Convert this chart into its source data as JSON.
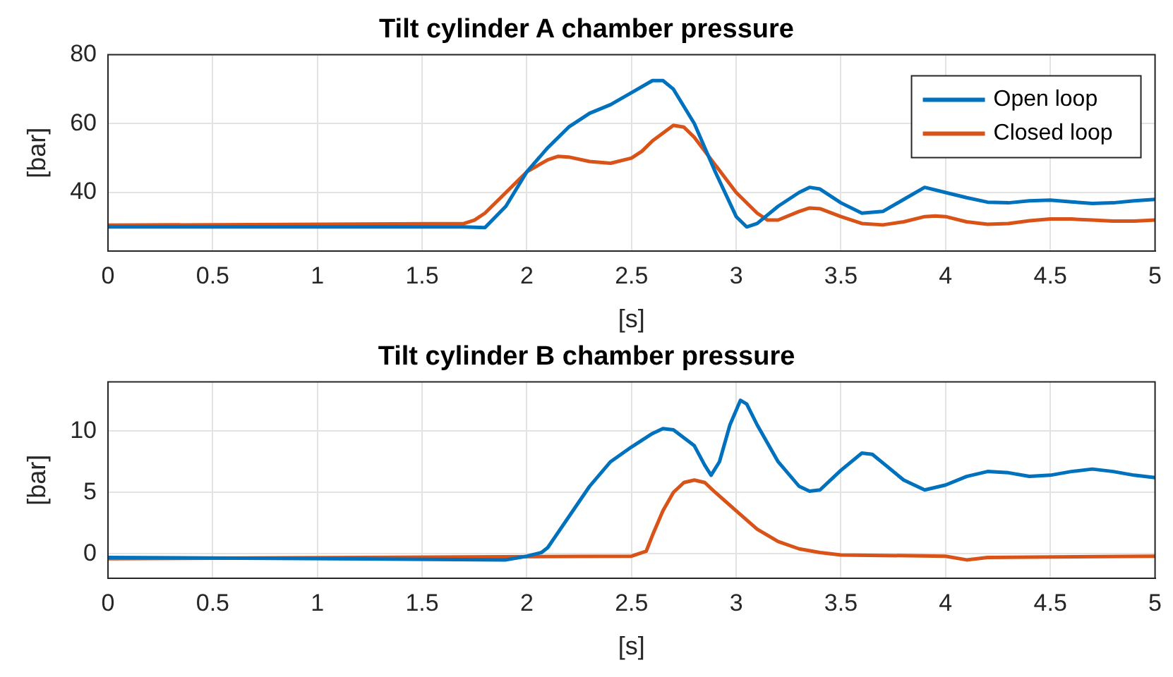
{
  "chart_data": [
    {
      "type": "line",
      "title": "Tilt cylinder A chamber pressure",
      "xlabel": "[s]",
      "ylabel": "[bar]",
      "xlim": [
        0,
        5
      ],
      "xticks": [
        0,
        0.5,
        1,
        1.5,
        2,
        2.5,
        3,
        3.5,
        4,
        4.5,
        5
      ],
      "ylim": [
        23,
        80
      ],
      "yticks": [
        40,
        60,
        80
      ],
      "grid": true,
      "legend": "top right",
      "marker": "none",
      "line_style": "solid",
      "series": [
        {
          "name": "Open loop",
          "color": "#0072bd",
          "x": [
            0,
            1.7,
            1.8,
            1.9,
            2.0,
            2.1,
            2.2,
            2.3,
            2.4,
            2.5,
            2.6,
            2.65,
            2.7,
            2.8,
            2.9,
            3.0,
            3.05,
            3.1,
            3.2,
            3.3,
            3.35,
            3.4,
            3.5,
            3.6,
            3.7,
            3.8,
            3.9,
            4.0,
            4.1,
            4.2,
            4.3,
            4.4,
            4.5,
            4.6,
            4.7,
            4.8,
            4.9,
            5
          ],
          "values": [
            30,
            30,
            29.8,
            36,
            46,
            53,
            59,
            63,
            65.5,
            69,
            72.5,
            72.5,
            70,
            60,
            46,
            33,
            30,
            31,
            36,
            40,
            41.5,
            41,
            37,
            34,
            34.5,
            38,
            41.5,
            40,
            38.5,
            37.2,
            37,
            37.6,
            37.8,
            37.3,
            36.8,
            37,
            37.6,
            38
          ]
        },
        {
          "name": "Closed loop",
          "color": "#d95319",
          "x": [
            0,
            1.7,
            1.75,
            1.8,
            1.9,
            2.0,
            2.1,
            2.15,
            2.2,
            2.3,
            2.4,
            2.5,
            2.55,
            2.6,
            2.7,
            2.75,
            2.8,
            2.9,
            3.0,
            3.1,
            3.15,
            3.2,
            3.3,
            3.35,
            3.4,
            3.5,
            3.6,
            3.7,
            3.8,
            3.9,
            3.95,
            4.0,
            4.1,
            4.2,
            4.3,
            4.4,
            4.5,
            4.6,
            4.7,
            4.8,
            4.9,
            5
          ],
          "values": [
            30.5,
            31,
            32,
            34,
            40,
            46,
            49.5,
            50.5,
            50.3,
            49,
            48.5,
            50,
            52,
            55,
            59.5,
            59,
            56,
            48,
            40,
            34,
            32,
            32,
            34.5,
            35.5,
            35.3,
            33,
            31,
            30.6,
            31.5,
            33,
            33.2,
            33,
            31.5,
            30.8,
            31,
            31.8,
            32.3,
            32.3,
            32,
            31.7,
            31.7,
            32
          ]
        }
      ]
    },
    {
      "type": "line",
      "title": "Tilt cylinder B chamber pressure",
      "xlabel": "[s]",
      "ylabel": "[bar]",
      "xlim": [
        0,
        5
      ],
      "xticks": [
        0,
        0.5,
        1,
        1.5,
        2,
        2.5,
        3,
        3.5,
        4,
        4.5,
        5
      ],
      "ylim": [
        -2,
        14
      ],
      "yticks": [
        0,
        5,
        10
      ],
      "grid": true,
      "marker": "none",
      "line_style": "solid",
      "series": [
        {
          "color": "#0072bd",
          "x": [
            0,
            1.9,
            2.0,
            2.07,
            2.1,
            2.2,
            2.3,
            2.4,
            2.5,
            2.6,
            2.65,
            2.7,
            2.8,
            2.85,
            2.88,
            2.92,
            2.97,
            3.02,
            3.05,
            3.1,
            3.2,
            3.3,
            3.35,
            3.4,
            3.5,
            3.6,
            3.65,
            3.7,
            3.8,
            3.9,
            4.0,
            4.1,
            4.2,
            4.3,
            4.4,
            4.5,
            4.6,
            4.7,
            4.8,
            4.9,
            5
          ],
          "values": [
            -0.3,
            -0.5,
            -0.2,
            0.1,
            0.5,
            3,
            5.5,
            7.5,
            8.7,
            9.8,
            10.2,
            10.1,
            8.8,
            7.2,
            6.4,
            7.5,
            10.5,
            12.5,
            12.2,
            10.5,
            7.5,
            5.5,
            5.1,
            5.2,
            6.8,
            8.2,
            8.1,
            7.4,
            6,
            5.2,
            5.6,
            6.3,
            6.7,
            6.6,
            6.3,
            6.4,
            6.7,
            6.9,
            6.7,
            6.4,
            6.2
          ]
        },
        {
          "color": "#d95319",
          "x": [
            0,
            2.5,
            2.57,
            2.6,
            2.65,
            2.7,
            2.75,
            2.8,
            2.85,
            2.9,
            3.0,
            3.1,
            3.2,
            3.3,
            3.4,
            3.5,
            4.0,
            4.1,
            4.2,
            5
          ],
          "values": [
            -0.4,
            -0.2,
            0.2,
            1.5,
            3.5,
            5,
            5.8,
            6,
            5.8,
            5,
            3.5,
            2,
            1,
            0.4,
            0.1,
            -0.1,
            -0.2,
            -0.5,
            -0.3,
            -0.2
          ]
        }
      ]
    }
  ]
}
